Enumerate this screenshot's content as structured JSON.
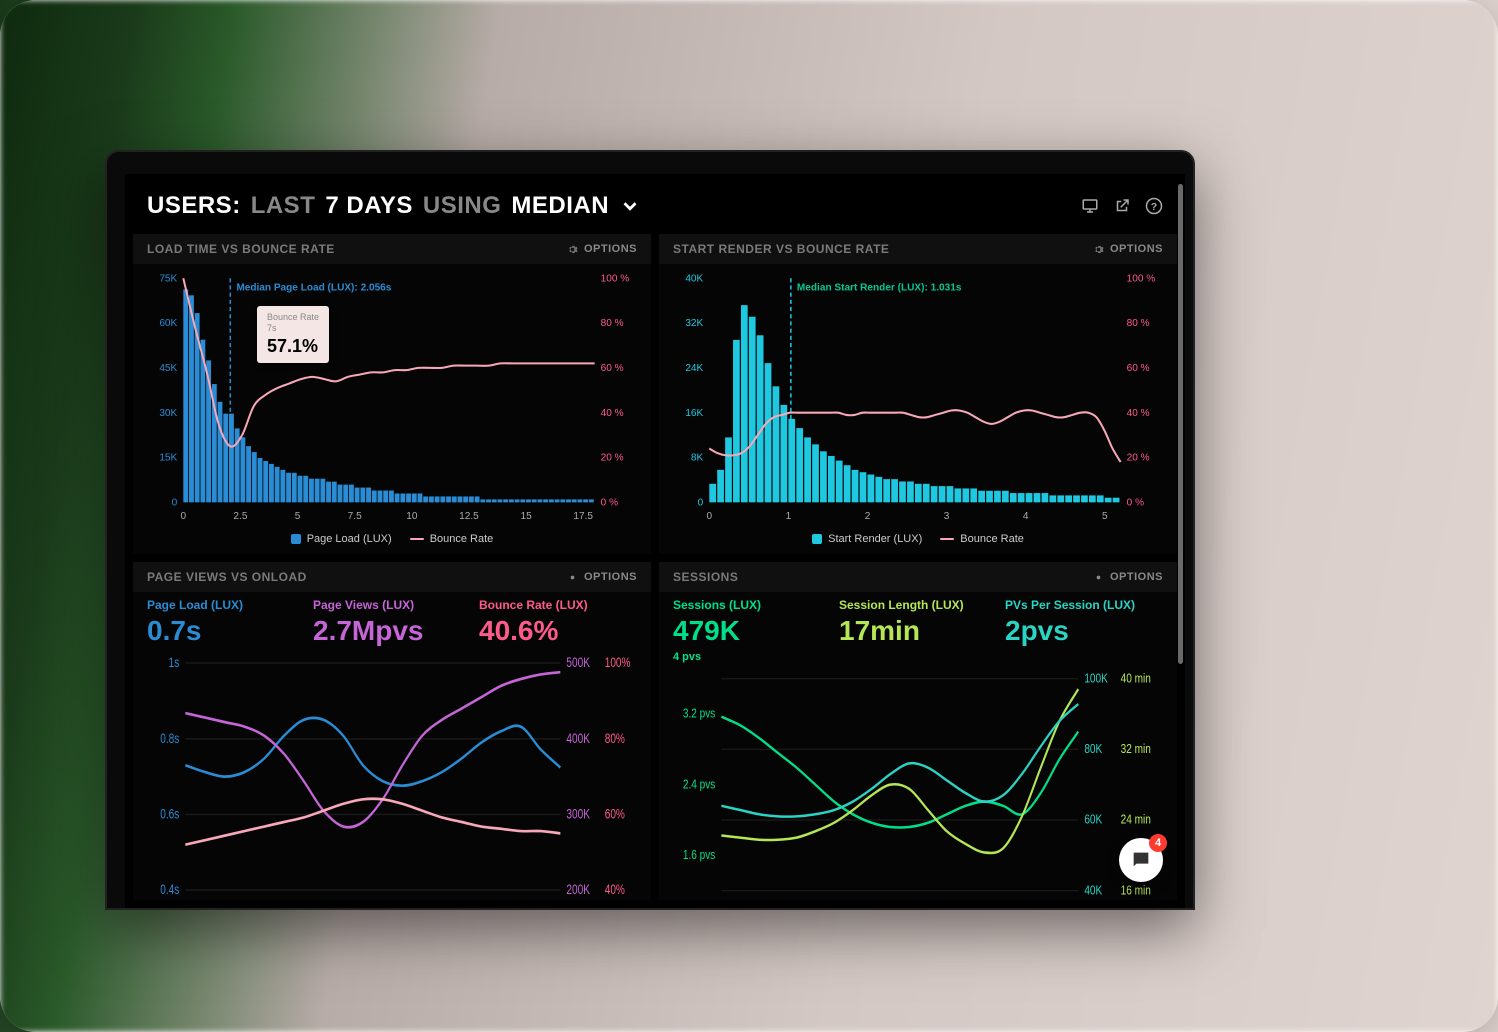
{
  "header": {
    "prefix": "USERS:",
    "dim1": "LAST",
    "bold1": "7 DAYS",
    "dim2": "USING",
    "bold2": "MEDIAN"
  },
  "colors": {
    "blue": "#2a8cd4",
    "cyan": "#1ec8e0",
    "pink": "#ff5a8c",
    "pink_soft": "#f7a8b8",
    "magenta": "#c565d8",
    "green": "#00e08a",
    "lime": "#b5e655",
    "teal": "#2ad4c4",
    "grey": "#7a7a7a",
    "panel_bg": "#050505"
  },
  "panels": {
    "load_bounce": {
      "title": "LOAD TIME VS BOUNCE RATE",
      "options": "OPTIONS",
      "annotation": "Median Page Load (LUX): 2.056s",
      "median_x": 2.056,
      "left_axis": {
        "max": 75000,
        "ticks": [
          "75K",
          "60K",
          "45K",
          "30K",
          "15K",
          "0"
        ],
        "color": "#2a8cd4"
      },
      "right_axis": {
        "max": 100,
        "ticks": [
          "100 %",
          "80 %",
          "60 %",
          "40 %",
          "20 %",
          "0 %"
        ],
        "color": "#ff5a8c"
      },
      "x_axis": {
        "min": 0,
        "max": 18,
        "ticks": [
          "0",
          "2.5",
          "5",
          "7.5",
          "10",
          "12.5",
          "15",
          "17.5"
        ]
      },
      "bars": [
        72,
        70,
        64,
        55,
        48,
        40,
        34,
        30,
        30,
        25,
        22,
        19,
        17,
        15,
        14,
        13,
        12,
        11,
        10,
        10,
        9,
        9,
        8,
        8,
        8,
        7,
        7,
        6,
        6,
        6,
        5,
        5,
        5,
        4,
        4,
        4,
        4,
        3,
        3,
        3,
        3,
        3,
        2,
        2,
        2,
        2,
        2,
        2,
        2,
        2,
        2,
        2,
        1,
        1,
        1,
        1,
        1,
        1,
        1,
        1,
        1,
        1,
        1,
        1,
        1,
        1,
        1,
        1,
        1,
        1,
        1,
        1
      ],
      "bar_color": "#2a8cd4",
      "line": [
        100,
        78,
        58,
        35,
        25,
        30,
        43,
        48,
        51,
        53,
        55,
        56,
        55,
        54,
        56,
        57,
        58,
        58,
        59,
        59,
        60,
        60,
        60,
        61,
        61,
        61,
        61,
        62,
        62,
        62,
        62,
        62,
        62,
        62,
        62,
        62
      ],
      "line_color": "#f7a8b8",
      "legend": [
        {
          "label": "Page Load (LUX)",
          "type": "box",
          "color": "#2a8cd4"
        },
        {
          "label": "Bounce Rate",
          "type": "line",
          "color": "#f7a8b8"
        }
      ],
      "tooltip": {
        "label1": "Bounce Rate",
        "label2": "7s",
        "value": "57.1%"
      }
    },
    "start_bounce": {
      "title": "START RENDER VS BOUNCE RATE",
      "options": "OPTIONS",
      "annotation": "Median Start Render (LUX): 1.031s",
      "median_x": 1.031,
      "left_axis": {
        "max": 40000,
        "ticks": [
          "40K",
          "32K",
          "24K",
          "16K",
          "8K",
          "0"
        ],
        "color": "#1ec8e0"
      },
      "right_axis": {
        "max": 100,
        "ticks": [
          "100 %",
          "80 %",
          "60 %",
          "40 %",
          "20 %",
          "0 %"
        ],
        "color": "#ff5a8c"
      },
      "x_axis": {
        "min": 0,
        "max": 5.2,
        "ticks": [
          "0",
          "1",
          "2",
          "3",
          "4",
          "5"
        ]
      },
      "bars": [
        8,
        14,
        28,
        70,
        85,
        80,
        72,
        60,
        50,
        42,
        36,
        32,
        28,
        25,
        22,
        20,
        18,
        16,
        14,
        13,
        12,
        11,
        10,
        10,
        9,
        9,
        8,
        8,
        7,
        7,
        7,
        6,
        6,
        6,
        5,
        5,
        5,
        5,
        4,
        4,
        4,
        4,
        4,
        3,
        3,
        3,
        3,
        3,
        3,
        3,
        2,
        2
      ],
      "bar_color": "#1ec8e0",
      "line": [
        24,
        22,
        21,
        21,
        22,
        25,
        30,
        35,
        38,
        39,
        40,
        40,
        40,
        40,
        40,
        40,
        40,
        39,
        39,
        40,
        40,
        40,
        40,
        40,
        40,
        39,
        38,
        38,
        39,
        40,
        41,
        41,
        40,
        38,
        36,
        35,
        36,
        38,
        40,
        41,
        41,
        40,
        39,
        38,
        38,
        39,
        40,
        40,
        38,
        32,
        24,
        18
      ],
      "line_color": "#f7a8b8",
      "legend": [
        {
          "label": "Start Render (LUX)",
          "type": "box",
          "color": "#1ec8e0"
        },
        {
          "label": "Bounce Rate",
          "type": "line",
          "color": "#f7a8b8"
        }
      ]
    },
    "pageviews": {
      "title": "PAGE VIEWS VS ONLOAD",
      "options": "OPTIONS",
      "metrics": [
        {
          "label": "Page Load (LUX)",
          "value": "0.7s",
          "color": "#2a8cd4"
        },
        {
          "label": "Page Views (LUX)",
          "value": "2.7Mpvs",
          "color": "#c565d8"
        },
        {
          "label": "Bounce Rate (LUX)",
          "value": "40.6%",
          "color": "#ff5a8c"
        }
      ],
      "left_axis": {
        "ticks": [
          "1s",
          "0.8s",
          "0.6s",
          "0.4s"
        ],
        "color": "#2a8cd4"
      },
      "right_axis1": {
        "ticks": [
          "500K",
          "400K",
          "300K",
          "200K"
        ],
        "color": "#c565d8"
      },
      "right_axis2": {
        "ticks": [
          "100%",
          "80%",
          "60%",
          "40%"
        ],
        "color": "#ff5a8c"
      },
      "lines": {
        "blue": {
          "color": "#2a8cd4",
          "points": [
            55,
            52,
            50,
            52,
            58,
            68,
            75,
            75,
            68,
            55,
            48,
            46,
            48,
            52,
            58,
            65,
            70,
            72,
            62,
            54
          ]
        },
        "magenta": {
          "color": "#c565d8",
          "points": [
            78,
            76,
            74,
            72,
            68,
            60,
            48,
            35,
            28,
            30,
            40,
            55,
            68,
            75,
            80,
            85,
            90,
            93,
            95,
            96
          ]
        },
        "pink": {
          "color": "#f7a8b8",
          "points": [
            20,
            22,
            24,
            26,
            28,
            30,
            32,
            35,
            38,
            40,
            40,
            38,
            35,
            32,
            30,
            28,
            27,
            26,
            26,
            25
          ]
        }
      }
    },
    "sessions": {
      "title": "SESSIONS",
      "options": "OPTIONS",
      "metrics": [
        {
          "label": "Sessions (LUX)",
          "value": "479K",
          "sub": "4 pvs",
          "color": "#00e08a"
        },
        {
          "label": "Session Length (LUX)",
          "value": "17min",
          "color": "#b5e655"
        },
        {
          "label": "PVs Per Session (LUX)",
          "value": "2pvs",
          "color": "#2ad4c4"
        }
      ],
      "left_axis": {
        "ticks": [
          "3.2 pvs",
          "2.4 pvs",
          "1.6 pvs"
        ],
        "color": "#00e08a"
      },
      "right_axis1": {
        "ticks": [
          "100K",
          "80K",
          "60K",
          "40K"
        ],
        "color": "#2ad4c4"
      },
      "right_axis2": {
        "ticks": [
          "40 min",
          "32 min",
          "24 min",
          "16 min"
        ],
        "color": "#b5e655"
      },
      "lines": {
        "green": {
          "color": "#00e08a",
          "points": [
            82,
            78,
            72,
            65,
            58,
            50,
            42,
            36,
            32,
            30,
            30,
            32,
            36,
            40,
            42,
            40,
            36,
            46,
            62,
            75
          ]
        },
        "lime": {
          "color": "#b5e655",
          "points": [
            26,
            25,
            24,
            24,
            25,
            28,
            32,
            38,
            45,
            50,
            48,
            38,
            28,
            22,
            18,
            20,
            35,
            58,
            80,
            95
          ]
        },
        "teal": {
          "color": "#2ad4c4",
          "points": [
            40,
            38,
            36,
            35,
            35,
            36,
            38,
            42,
            48,
            55,
            60,
            58,
            52,
            46,
            42,
            45,
            55,
            68,
            80,
            88
          ]
        }
      }
    }
  },
  "chat_badge": "4"
}
